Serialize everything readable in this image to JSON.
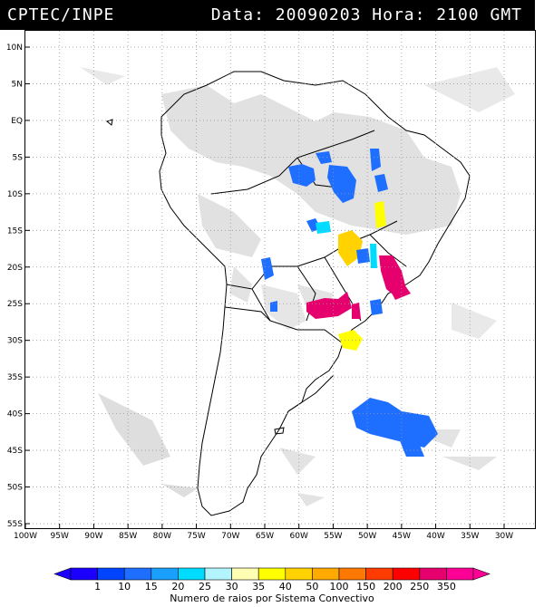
{
  "header": {
    "source": "CPTEC/INPE",
    "datetime": "Data: 20090203 Hora: 2100 GMT"
  },
  "map": {
    "lat_labels": [
      "10N",
      "5N",
      "EQ",
      "5S",
      "10S",
      "15S",
      "20S",
      "25S",
      "30S",
      "35S",
      "40S",
      "45S",
      "50S",
      "55S"
    ],
    "lon_labels": [
      "100W",
      "95W",
      "90W",
      "85W",
      "80W",
      "75W",
      "70W",
      "65W",
      "60W",
      "55W",
      "50W",
      "45W",
      "40W",
      "35W",
      "30W"
    ]
  },
  "legend": {
    "values": [
      "1",
      "10",
      "15",
      "20",
      "25",
      "30",
      "35",
      "40",
      "50",
      "100",
      "150",
      "200",
      "250",
      "350"
    ],
    "colors": [
      "#1b00ff",
      "#0044ff",
      "#1e6eff",
      "#19a0ff",
      "#00dcff",
      "#b3f5ff",
      "#ffffb4",
      "#ffff00",
      "#ffd200",
      "#ffaa00",
      "#ff7800",
      "#ff3c00",
      "#ff0000",
      "#e6006e",
      "#ff0096"
    ],
    "caption": "Numero de raios por Sistema Convectivo"
  }
}
